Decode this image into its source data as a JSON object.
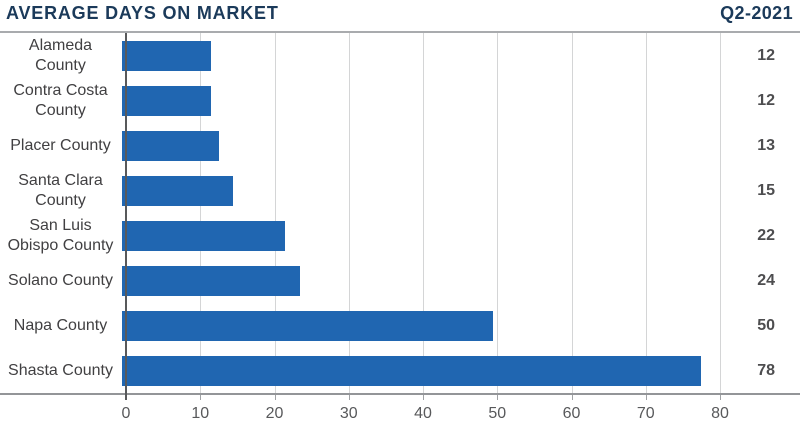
{
  "header": {
    "title": "AVERAGE DAYS ON MARKET",
    "period": "Q2-2021"
  },
  "colors": {
    "title_navy": "#1b3a5a",
    "bar_blue": "#2066b1",
    "gridline_gray": "#d4d5d6",
    "axis_gray": "#58595b",
    "category_label_gray": "#414042",
    "value_label_gray": "#4d4d4f",
    "header_rule_gray": "#a9abae",
    "bottom_rule_gray": "#939598"
  },
  "chart_data": {
    "type": "bar",
    "orientation": "horizontal",
    "title": "AVERAGE DAYS ON MARKET",
    "subtitle": "Q2-2021",
    "categories": [
      "Alameda County",
      "Contra Costa County",
      "Placer County",
      "Santa Clara County",
      "San Luis Obispo County",
      "Solano County",
      "Napa County",
      "Shasta County"
    ],
    "values": [
      12,
      12,
      13,
      15,
      22,
      24,
      50,
      78
    ],
    "value_labels_position": "right",
    "xlabel": "",
    "ylabel": "",
    "xlim": [
      0,
      80
    ],
    "xticks": [
      0,
      10,
      20,
      30,
      40,
      50,
      60,
      70,
      80
    ],
    "grid": true,
    "legend": false
  }
}
